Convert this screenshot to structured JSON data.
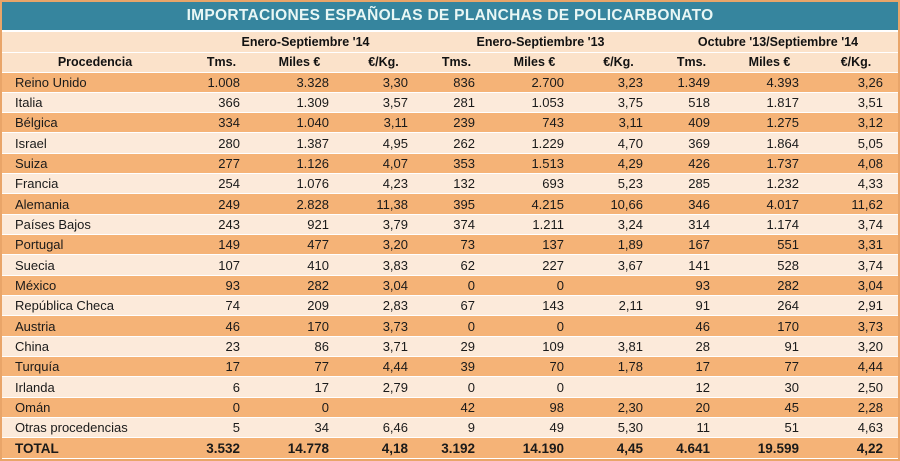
{
  "colors": {
    "title_bg": "#36859E",
    "title_text": "#E9F7F5",
    "header_bg": "#FBE2CA",
    "row_dark": "#F5B377",
    "row_light": "#FCEADA",
    "border": "#E9A569",
    "text": "#1A1A1A"
  },
  "chart_data": {
    "type": "table",
    "title": "IMPORTACIONES ESPAÑOLAS DE PLANCHAS DE POLICARBONATO",
    "row_header": "Procedencia",
    "group_headers": [
      "Enero-Septiembre '14",
      "Enero-Septiembre '13",
      "Octubre '13/Septiembre '14"
    ],
    "sub_headers": [
      "Tms.",
      "Miles €",
      "€/Kg."
    ],
    "rows": [
      {
        "name": "Reino Unido",
        "values": [
          "1.008",
          "3.328",
          "3,30",
          "836",
          "2.700",
          "3,23",
          "1.349",
          "4.393",
          "3,26"
        ]
      },
      {
        "name": "Italia",
        "values": [
          "366",
          "1.309",
          "3,57",
          "281",
          "1.053",
          "3,75",
          "518",
          "1.817",
          "3,51"
        ]
      },
      {
        "name": "Bélgica",
        "values": [
          "334",
          "1.040",
          "3,11",
          "239",
          "743",
          "3,11",
          "409",
          "1.275",
          "3,12"
        ]
      },
      {
        "name": "Israel",
        "values": [
          "280",
          "1.387",
          "4,95",
          "262",
          "1.229",
          "4,70",
          "369",
          "1.864",
          "5,05"
        ]
      },
      {
        "name": "Suiza",
        "values": [
          "277",
          "1.126",
          "4,07",
          "353",
          "1.513",
          "4,29",
          "426",
          "1.737",
          "4,08"
        ]
      },
      {
        "name": "Francia",
        "values": [
          "254",
          "1.076",
          "4,23",
          "132",
          "693",
          "5,23",
          "285",
          "1.232",
          "4,33"
        ]
      },
      {
        "name": "Alemania",
        "values": [
          "249",
          "2.828",
          "11,38",
          "395",
          "4.215",
          "10,66",
          "346",
          "4.017",
          "11,62"
        ]
      },
      {
        "name": "Países Bajos",
        "values": [
          "243",
          "921",
          "3,79",
          "374",
          "1.211",
          "3,24",
          "314",
          "1.174",
          "3,74"
        ]
      },
      {
        "name": "Portugal",
        "values": [
          "149",
          "477",
          "3,20",
          "73",
          "137",
          "1,89",
          "167",
          "551",
          "3,31"
        ]
      },
      {
        "name": "Suecia",
        "values": [
          "107",
          "410",
          "3,83",
          "62",
          "227",
          "3,67",
          "141",
          "528",
          "3,74"
        ]
      },
      {
        "name": "México",
        "values": [
          "93",
          "282",
          "3,04",
          "0",
          "0",
          "",
          "93",
          "282",
          "3,04"
        ]
      },
      {
        "name": "República Checa",
        "values": [
          "74",
          "209",
          "2,83",
          "67",
          "143",
          "2,11",
          "91",
          "264",
          "2,91"
        ]
      },
      {
        "name": "Austria",
        "values": [
          "46",
          "170",
          "3,73",
          "0",
          "0",
          "",
          "46",
          "170",
          "3,73"
        ]
      },
      {
        "name": "China",
        "values": [
          "23",
          "86",
          "3,71",
          "29",
          "109",
          "3,81",
          "28",
          "91",
          "3,20"
        ]
      },
      {
        "name": "Turquía",
        "values": [
          "17",
          "77",
          "4,44",
          "39",
          "70",
          "1,78",
          "17",
          "77",
          "4,44"
        ]
      },
      {
        "name": "Irlanda",
        "values": [
          "6",
          "17",
          "2,79",
          "0",
          "0",
          "",
          "12",
          "30",
          "2,50"
        ]
      },
      {
        "name": "Omán",
        "values": [
          "0",
          "0",
          "",
          "42",
          "98",
          "2,30",
          "20",
          "45",
          "2,28"
        ]
      },
      {
        "name": "Otras procedencias",
        "values": [
          "5",
          "34",
          "6,46",
          "9",
          "49",
          "5,30",
          "11",
          "51",
          "4,63"
        ]
      }
    ],
    "total": {
      "name": "TOTAL",
      "values": [
        "3.532",
        "14.778",
        "4,18",
        "3.192",
        "14.190",
        "4,45",
        "4.641",
        "19.599",
        "4,22"
      ]
    }
  }
}
